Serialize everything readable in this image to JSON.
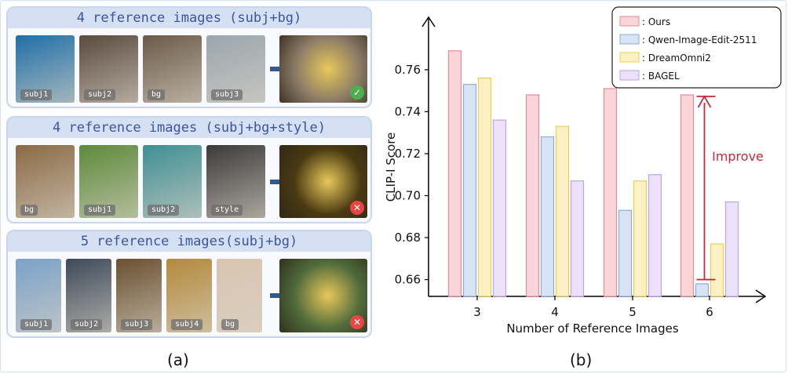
{
  "panel_a": {
    "caption": "(a)",
    "rows": [
      {
        "title": "4  reference images (subj+bg)",
        "inputs": [
          "subj1",
          "subj2",
          "bg",
          "subj3"
        ],
        "result": "success"
      },
      {
        "title": "4  reference images (subj+bg+style)",
        "inputs": [
          "bg",
          "subj1",
          "subj2",
          "style"
        ],
        "result": "failure"
      },
      {
        "title": "5  reference images(subj+bg)",
        "inputs": [
          "subj1",
          "subj2",
          "subj3",
          "subj4",
          "bg"
        ],
        "result": "failure"
      }
    ],
    "icons": {
      "arrow": "right-arrow-icon",
      "success": "checkmark-icon",
      "failure": "cross-icon"
    }
  },
  "panel_b": {
    "caption": "(b)",
    "improve_label": "Improve"
  },
  "chart_data": {
    "type": "bar",
    "title": "",
    "xlabel": "Number of Reference Images",
    "ylabel": "CLIP-I  Score",
    "categories": [
      "3",
      "4",
      "5",
      "6"
    ],
    "ylim": [
      0.652,
      0.782
    ],
    "yticks": [
      0.66,
      0.68,
      0.7,
      0.72,
      0.74,
      0.76
    ],
    "ytick_labels": [
      "0.66",
      "0.68",
      "0.70",
      "0.72",
      "0.74",
      "0.76"
    ],
    "grid": false,
    "legend_position": "top-right",
    "legend_labels": [
      ": Ours",
      ": Qwen-Image-Edit-2511",
      ": DreamOmni2",
      ": BAGEL"
    ],
    "series": [
      {
        "name": "Ours",
        "values": [
          0.769,
          0.748,
          0.751,
          0.748
        ],
        "fill": "#f9d5da",
        "stroke": "#e58a98"
      },
      {
        "name": "Qwen-Image-Edit-2511",
        "values": [
          0.753,
          0.728,
          0.693,
          0.658
        ],
        "fill": "#d6e4f6",
        "stroke": "#8fabd6"
      },
      {
        "name": "DreamOmni2",
        "values": [
          0.756,
          0.733,
          0.707,
          0.677
        ],
        "fill": "#fbf1c3",
        "stroke": "#e8cf5a"
      },
      {
        "name": "BAGEL",
        "values": [
          0.736,
          0.707,
          0.71,
          0.697
        ],
        "fill": "#ece1f8",
        "stroke": "#c0a3e6"
      }
    ],
    "annotation": {
      "text": "Improve",
      "category": "6",
      "from": 0.66,
      "to": 0.748,
      "color": "#c42b3a"
    }
  }
}
